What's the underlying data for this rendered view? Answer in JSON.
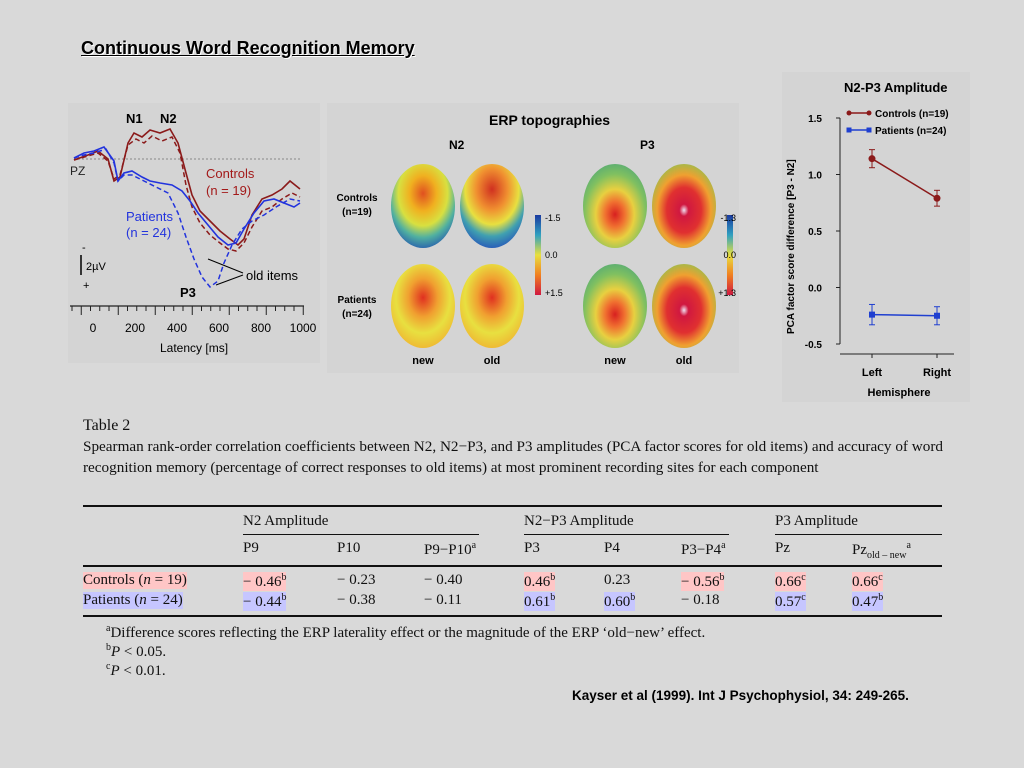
{
  "slide": {
    "title": "Continuous Word Recognition Memory",
    "citation": "Kayser et al (1999). Int J Psychophysiol, 34: 249-265."
  },
  "erp_figure": {
    "peak_labels": [
      "N1",
      "N2",
      "P3"
    ],
    "site_label": "PZ",
    "legend": [
      {
        "label": "Controls",
        "n": "(n = 19)",
        "color": "#a31a1a"
      },
      {
        "label": "Patients",
        "n": "(n = 24)",
        "color": "#2233dd"
      }
    ],
    "annotation": "old items",
    "scale_minus": "-",
    "scale_label": "2µV",
    "scale_plus": "+",
    "x_ticks": [
      "0",
      "200",
      "400",
      "600",
      "800",
      "1000"
    ],
    "xlabel": "Latency [ms]"
  },
  "topo_figure": {
    "title": "ERP topographies",
    "components": [
      "N2",
      "P3"
    ],
    "row_labels": [
      [
        "Controls",
        "(n=19)"
      ],
      [
        "Patients",
        "(n=24)"
      ]
    ],
    "col_labels": [
      "new",
      "old",
      "new",
      "old"
    ],
    "n2_scale": [
      "-1.5",
      "0.0",
      "+1.5"
    ],
    "p3_scale": [
      "-1.3",
      "0.0",
      "+1.3"
    ]
  },
  "chart_data": {
    "type": "line",
    "title": "N2-P3 Amplitude",
    "xlabel": "Hemisphere",
    "ylabel": "PCA factor score difference [P3 - N2]",
    "categories": [
      "Left",
      "Right"
    ],
    "ylim": [
      -0.5,
      1.5
    ],
    "yticks": [
      "1.5",
      "1.0",
      "0.5",
      "0.0",
      "-0.5"
    ],
    "series": [
      {
        "name": "Controls (n=19)",
        "values": [
          1.14,
          0.79
        ],
        "errors": [
          0.08,
          0.07
        ],
        "color": "#8b1a1a",
        "marker": "circle"
      },
      {
        "name": "Patients (n=24)",
        "values": [
          -0.24,
          -0.25
        ],
        "errors": [
          0.09,
          0.08
        ],
        "color": "#1f3fd0",
        "marker": "square"
      }
    ],
    "legend_position": "top"
  },
  "table": {
    "label": "Table 2",
    "caption": "Spearman rank-order correlation coefficients between N2, N2−P3, and P3 amplitudes (PCA factor scores for old items) and accuracy of word recognition memory (percentage of correct responses to old items) at most prominent recording sites for each component",
    "groups": [
      "N2 Amplitude",
      "N2−P3 Amplitude",
      "P3 Amplitude"
    ],
    "columns": [
      "P9",
      "P10",
      "P9−P10",
      "P3",
      "P4",
      "P3−P4",
      "Pz",
      "Pz"
    ],
    "column_sups": [
      "",
      "",
      "a",
      "",
      "",
      "a",
      "",
      "a"
    ],
    "pz_subscript": "old – new",
    "rows": [
      {
        "label_pre": "Controls (",
        "label_n": "n",
        "label_post": " = 19)",
        "cells": [
          {
            "v": "− 0.46",
            "s": "b",
            "hl": true
          },
          {
            "v": "− 0.23",
            "s": "",
            "hl": false
          },
          {
            "v": "− 0.40",
            "s": "",
            "hl": false
          },
          {
            "v": "0.46",
            "s": "b",
            "hl": true
          },
          {
            "v": "0.23",
            "s": "",
            "hl": false
          },
          {
            "v": "− 0.56",
            "s": "b",
            "hl": true
          },
          {
            "v": "0.66",
            "s": "c",
            "hl": true
          },
          {
            "v": "0.66",
            "s": "c",
            "hl": true
          }
        ]
      },
      {
        "label_pre": "Patients (",
        "label_n": "n",
        "label_post": " = 24)",
        "cells": [
          {
            "v": "− 0.44",
            "s": "b",
            "hl": true
          },
          {
            "v": "− 0.38",
            "s": "",
            "hl": false
          },
          {
            "v": "− 0.11",
            "s": "",
            "hl": false
          },
          {
            "v": "0.61",
            "s": "b",
            "hl": true
          },
          {
            "v": "0.60",
            "s": "b",
            "hl": true
          },
          {
            "v": "− 0.18",
            "s": "",
            "hl": false
          },
          {
            "v": "0.57",
            "s": "c",
            "hl": true
          },
          {
            "v": "0.47",
            "s": "b",
            "hl": true
          }
        ]
      }
    ],
    "footnotes": [
      {
        "mark": "a",
        "text": "Difference scores reflecting the ERP laterality effect or the magnitude of the ERP ‘old−new’ effect."
      },
      {
        "mark": "b",
        "text": "P < 0.05."
      },
      {
        "mark": "c",
        "text": "P < 0.01."
      }
    ]
  }
}
